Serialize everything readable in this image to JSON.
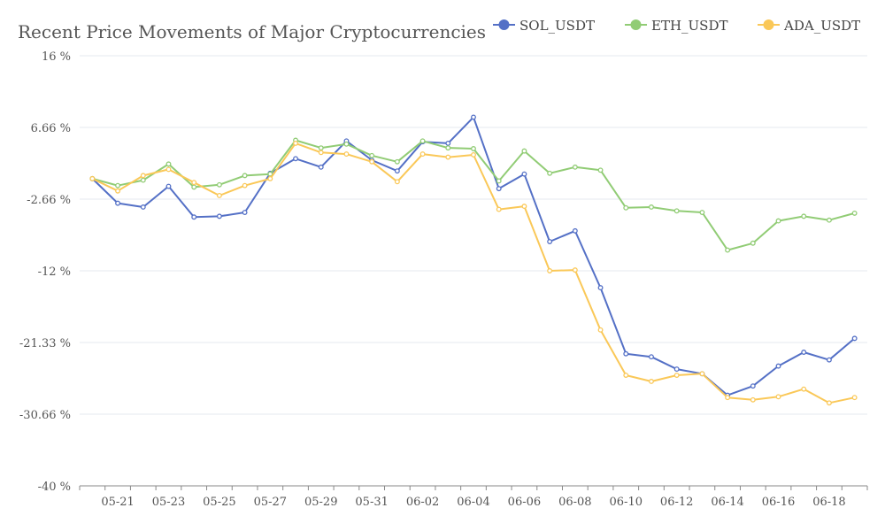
{
  "chart_data": {
    "type": "line",
    "title": "Recent Price Movements of Major Cryptocurrencies",
    "xlabel": "",
    "ylabel": "",
    "y_tick_values": [
      16,
      6.66,
      -2.66,
      -12,
      -21.33,
      -30.66,
      -40
    ],
    "y_tick_labels": [
      "16 %",
      "6.66 %",
      "-2.66 %",
      "-12 %",
      "-21.33 %",
      "-30.66 %",
      "-40 %"
    ],
    "ylim": [
      -40,
      16
    ],
    "grid": true,
    "legend_position": "top-right",
    "x": [
      "05-20",
      "05-21",
      "05-22",
      "05-23",
      "05-24",
      "05-25",
      "05-26",
      "05-27",
      "05-28",
      "05-29",
      "05-30",
      "05-31",
      "06-01",
      "06-02",
      "06-03",
      "06-04",
      "06-05",
      "06-06",
      "06-07",
      "06-08",
      "06-09",
      "06-10",
      "06-11",
      "06-12",
      "06-13",
      "06-14",
      "06-15",
      "06-16",
      "06-17",
      "06-18",
      "06-19"
    ],
    "x_tick_labels": [
      "05-21",
      "05-23",
      "05-25",
      "05-27",
      "05-29",
      "05-31",
      "06-02",
      "06-04",
      "06-06",
      "06-08",
      "06-10",
      "06-12",
      "06-14",
      "06-16",
      "06-18"
    ],
    "series": [
      {
        "name": "SOL_USDT",
        "color": "#5470c6",
        "values": [
          0,
          -3.2,
          -3.7,
          -1.0,
          -5.0,
          -4.9,
          -4.4,
          0.7,
          2.6,
          1.5,
          4.9,
          2.4,
          1.0,
          4.8,
          4.6,
          8.0,
          -1.3,
          0.6,
          -8.2,
          -6.8,
          -14.2,
          -22.8,
          -23.2,
          -24.8,
          -25.4,
          -28.2,
          -27.0,
          -24.4,
          -22.6,
          -23.6,
          -20.8
        ]
      },
      {
        "name": "ETH_USDT",
        "color": "#91cc75",
        "values": [
          0,
          -0.9,
          -0.2,
          1.9,
          -1.1,
          -0.8,
          0.4,
          0.6,
          5.0,
          4.0,
          4.5,
          3.0,
          2.2,
          4.9,
          4.0,
          3.9,
          -0.3,
          3.6,
          0.7,
          1.5,
          1.1,
          -3.8,
          -3.7,
          -4.2,
          -4.4,
          -9.3,
          -8.4,
          -5.5,
          -4.9,
          -5.4,
          -4.5
        ]
      },
      {
        "name": "ADA_USDT",
        "color": "#fac858",
        "values": [
          0,
          -1.6,
          0.4,
          1.2,
          -0.5,
          -2.2,
          -0.9,
          0.0,
          4.6,
          3.4,
          3.2,
          2.2,
          -0.4,
          3.2,
          2.8,
          3.1,
          -4.0,
          -3.6,
          -12.0,
          -11.9,
          -19.7,
          -25.6,
          -26.4,
          -25.6,
          -25.4,
          -28.5,
          -28.8,
          -28.4,
          -27.4,
          -29.2,
          -28.5
        ]
      }
    ]
  }
}
